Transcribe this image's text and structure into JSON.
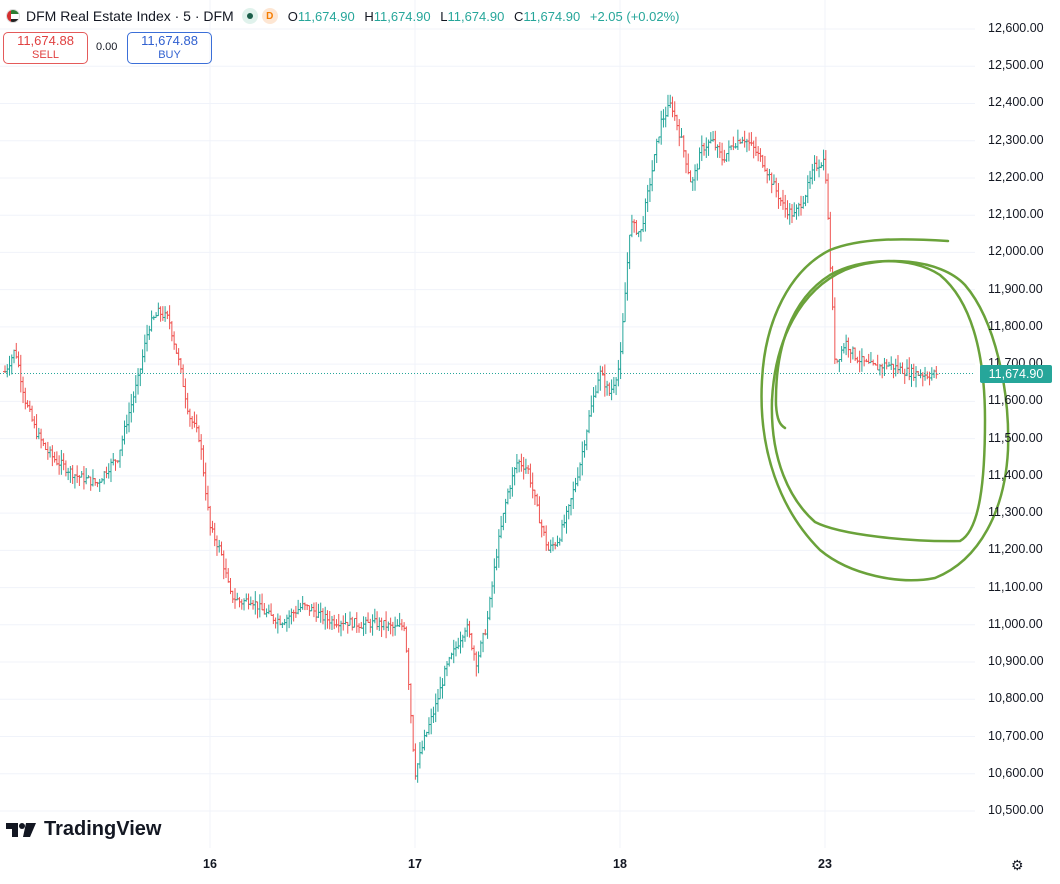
{
  "header": {
    "symbol_title": "DFM Real Estate Index · 5 · DFM",
    "badge_d": "D",
    "ohlc": {
      "o_label": "O",
      "o_value": "11,674.90",
      "h_label": "H",
      "h_value": "11,674.90",
      "l_label": "L",
      "l_value": "11,674.90",
      "c_label": "C",
      "c_value": "11,674.90",
      "change": "+2.05 (+0.02%)"
    }
  },
  "trade": {
    "sell_price": "11,674.88",
    "sell_label": "SELL",
    "spread": "0.00",
    "buy_price": "11,674.88",
    "buy_label": "BUY"
  },
  "branding": {
    "logo_text": "TradingView"
  },
  "current_price_label": "11,674.90",
  "colors": {
    "up": "#26a69a",
    "down": "#ef5350",
    "annotation": "#6aa23a",
    "grid": "#f0f3fa"
  },
  "chart_data": {
    "type": "line",
    "title": "DFM Real Estate Index · 5 · DFM",
    "xlabel": "",
    "ylabel": "",
    "ylim": [
      10450,
      12650
    ],
    "yticks": [
      "12,600.00",
      "12,500.00",
      "12,400.00",
      "12,300.00",
      "12,200.00",
      "12,100.00",
      "12,000.00",
      "11,900.00",
      "11,800.00",
      "11,700.00",
      "11,600.00",
      "11,500.00",
      "11,400.00",
      "11,300.00",
      "11,200.00",
      "11,100.00",
      "11,000.00",
      "10,900.00",
      "10,800.00",
      "10,700.00",
      "10,600.00",
      "10,500.00"
    ],
    "ytick_values": [
      12600,
      12500,
      12400,
      12300,
      12200,
      12100,
      12000,
      11900,
      11800,
      11700,
      11600,
      11500,
      11400,
      11300,
      11200,
      11100,
      11000,
      10900,
      10800,
      10700,
      10600,
      10500
    ],
    "xticks": [
      "16",
      "17",
      "18",
      "23"
    ],
    "xtick_positions": [
      0.2,
      0.4,
      0.6,
      0.8
    ],
    "current_price": 11674.9,
    "annotation": "hand-drawn green circle around the latest price action",
    "series": [
      {
        "x": [
          0,
          0.01,
          0.02,
          0.03,
          0.04,
          0.05,
          0.06,
          0.07,
          0.08,
          0.09,
          0.1,
          0.11,
          0.12,
          0.13,
          0.14,
          0.15,
          0.16,
          0.17,
          0.18,
          0.19,
          0.2,
          0.21,
          0.22,
          0.23,
          0.24,
          0.25,
          0.26,
          0.27,
          0.28,
          0.29,
          0.3,
          0.31,
          0.32,
          0.33,
          0.34,
          0.35,
          0.36,
          0.37,
          0.38,
          0.39,
          0.4,
          0.41,
          0.42,
          0.43,
          0.44,
          0.45,
          0.46,
          0.47,
          0.48,
          0.49,
          0.5,
          0.51,
          0.52,
          0.53,
          0.54,
          0.55,
          0.56,
          0.57,
          0.58,
          0.59,
          0.6,
          0.61,
          0.62,
          0.63,
          0.64,
          0.65,
          0.66,
          0.67,
          0.68,
          0.69,
          0.7,
          0.71,
          0.72,
          0.73,
          0.74,
          0.75,
          0.76,
          0.77,
          0.78,
          0.79,
          0.8,
          0.81,
          0.82,
          0.83,
          0.84,
          0.85,
          0.86,
          0.87,
          0.88,
          0.89,
          0.9,
          0.91
        ],
        "values": [
          11680,
          11740,
          11600,
          11520,
          11470,
          11440,
          11420,
          11400,
          11390,
          11380,
          11420,
          11450,
          11560,
          11660,
          11800,
          11840,
          11820,
          11700,
          11560,
          11500,
          11260,
          11200,
          11080,
          11060,
          11070,
          11040,
          11020,
          11010,
          11030,
          11050,
          11040,
          11020,
          11010,
          11010,
          11005,
          11000,
          11005,
          11000,
          10990,
          11000,
          10600,
          10700,
          10780,
          10880,
          10940,
          11000,
          10900,
          11000,
          11200,
          11350,
          11440,
          11420,
          11300,
          11200,
          11230,
          11310,
          11420,
          11560,
          11680,
          11620,
          11700,
          12080,
          12050,
          12200,
          12350,
          12400,
          12300,
          12180,
          12280,
          12300,
          12250,
          12290,
          12310,
          12280,
          12240,
          12180,
          12120,
          12100,
          12150,
          12230,
          12250,
          11700,
          11760,
          11720,
          11700,
          11690,
          11700,
          11690,
          11680,
          11675,
          11672,
          11674.9
        ]
      }
    ]
  }
}
